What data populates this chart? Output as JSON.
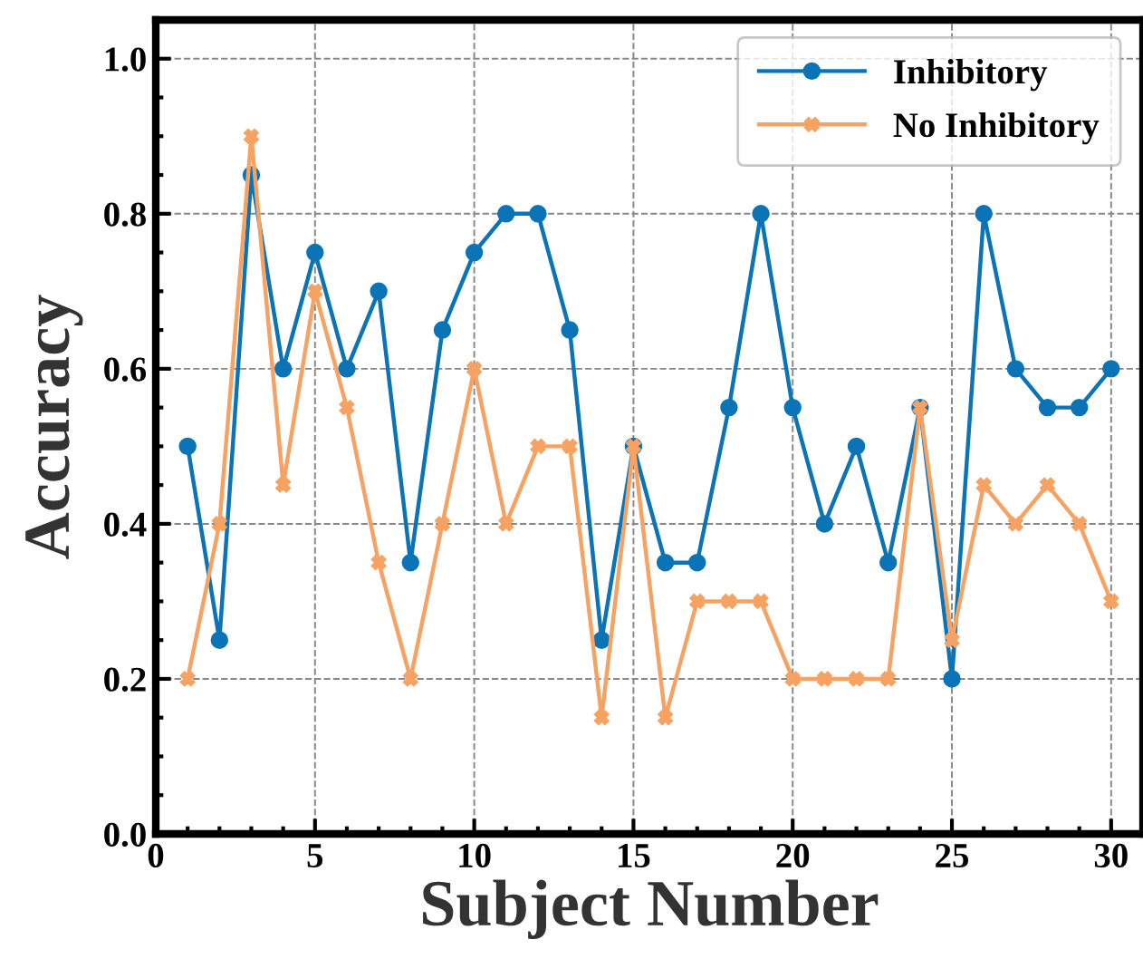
{
  "chart_data": {
    "type": "line",
    "xlabel": "Subject Number",
    "ylabel": "Accuracy",
    "x": [
      1,
      2,
      3,
      4,
      5,
      6,
      7,
      8,
      9,
      10,
      11,
      12,
      13,
      14,
      15,
      16,
      17,
      18,
      19,
      20,
      21,
      22,
      23,
      24,
      25,
      26,
      27,
      28,
      29,
      30
    ],
    "series": [
      {
        "name": "Inhibitory",
        "color": "#0b74b7",
        "marker": "circle",
        "values": [
          0.5,
          0.25,
          0.85,
          0.6,
          0.75,
          0.6,
          0.7,
          0.35,
          0.65,
          0.75,
          0.8,
          0.8,
          0.65,
          0.25,
          0.5,
          0.35,
          0.35,
          0.55,
          0.8,
          0.55,
          0.4,
          0.5,
          0.35,
          0.55,
          0.2,
          0.8,
          0.6,
          0.55,
          0.55,
          0.6
        ]
      },
      {
        "name": "No Inhibitory",
        "color": "#f5a263",
        "marker": "cross",
        "values": [
          0.2,
          0.4,
          0.9,
          0.45,
          0.7,
          0.55,
          0.35,
          0.2,
          0.4,
          0.6,
          0.4,
          0.5,
          0.5,
          0.15,
          0.5,
          0.15,
          0.3,
          0.3,
          0.3,
          0.2,
          0.2,
          0.2,
          0.2,
          0.55,
          0.25,
          0.45,
          0.4,
          0.45,
          0.4,
          0.3
        ]
      }
    ],
    "xlim": [
      0,
      31
    ],
    "xticks": [
      0,
      5,
      10,
      15,
      20,
      25,
      30
    ],
    "ylim": [
      0,
      1.05
    ],
    "yticks": [
      {
        "value": 0,
        "label": "0.0"
      },
      0.2,
      0.4,
      0.6,
      0.8,
      {
        "value": 1.0,
        "label": "1.0"
      }
    ],
    "grid": true,
    "legend": "top right",
    "line_style": "solid"
  }
}
